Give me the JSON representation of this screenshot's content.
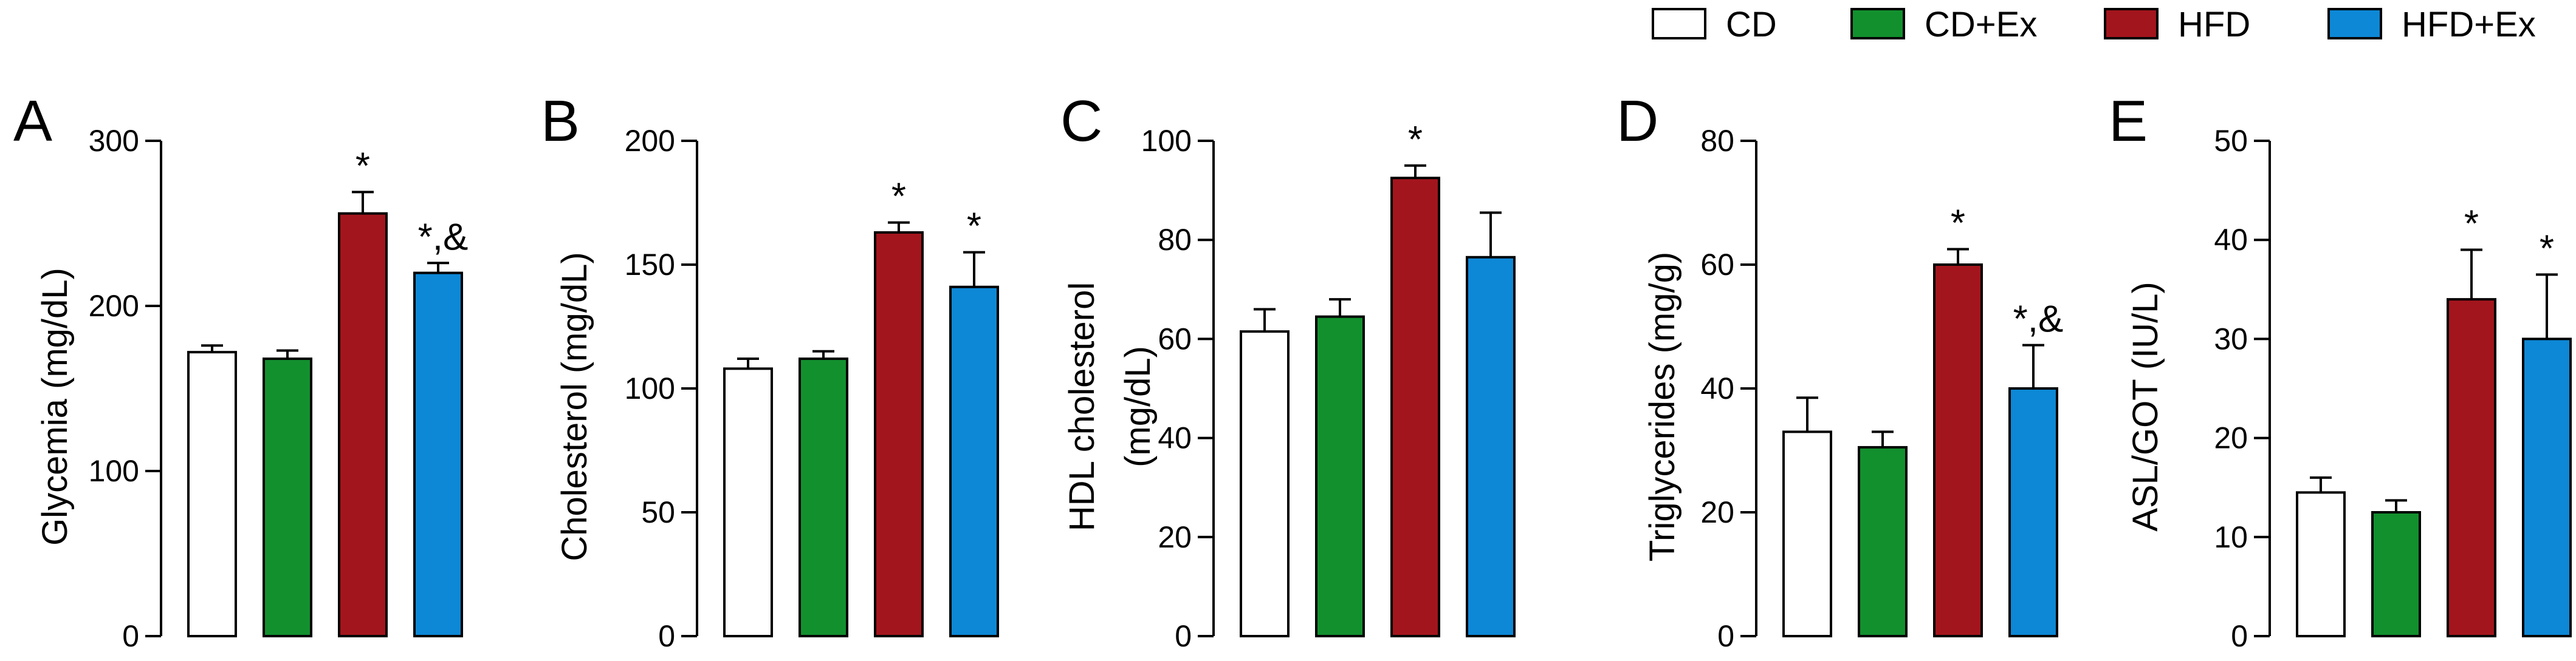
{
  "legend": [
    {
      "label": "CD",
      "color": "#ffffff"
    },
    {
      "label": "CD+Ex",
      "color": "#12902e"
    },
    {
      "label": "HFD",
      "color": "#a3151d"
    },
    {
      "label": "HFD+Ex",
      "color": "#0d88d6"
    }
  ],
  "chart_data": [
    {
      "type": "bar",
      "panel": "A",
      "categories": [
        "CD",
        "CD+Ex",
        "HFD",
        "HFD+Ex"
      ],
      "values": [
        172,
        168,
        256,
        220
      ],
      "errors": [
        4,
        5,
        13,
        6
      ],
      "annotations": [
        "",
        "",
        "*",
        "*,&"
      ],
      "ylabel": "Glycemia (mg/dL)",
      "ylim": [
        0,
        300
      ],
      "yticks": [
        "0",
        "100",
        "200",
        "300"
      ]
    },
    {
      "type": "bar",
      "panel": "B",
      "categories": [
        "CD",
        "CD+Ex",
        "HFD",
        "HFD+Ex"
      ],
      "values": [
        108,
        112,
        163,
        141
      ],
      "errors": [
        4,
        3,
        4,
        14
      ],
      "annotations": [
        "",
        "",
        "*",
        "*"
      ],
      "ylabel": "Cholesterol (mg/dL)",
      "ylim": [
        0,
        200
      ],
      "yticks": [
        "0",
        "50",
        "100",
        "150",
        "200"
      ]
    },
    {
      "type": "bar",
      "panel": "C",
      "categories": [
        "CD",
        "CD+Ex",
        "HFD",
        "HFD+Ex"
      ],
      "values": [
        61.5,
        64.5,
        92.5,
        76.5
      ],
      "errors": [
        4.5,
        3.5,
        2.5,
        9
      ],
      "annotations": [
        "",
        "",
        "*",
        ""
      ],
      "ylabel": [
        "HDL cholesterol",
        "(mg/dL)"
      ],
      "ylim": [
        0,
        100
      ],
      "yticks": [
        "0",
        "20",
        "40",
        "60",
        "80",
        "100"
      ]
    },
    {
      "type": "bar",
      "panel": "D",
      "categories": [
        "CD",
        "CD+Ex",
        "HFD",
        "HFD+Ex"
      ],
      "values": [
        33,
        30.5,
        60,
        40
      ],
      "errors": [
        5.5,
        2.5,
        2.5,
        7
      ],
      "annotations": [
        "",
        "",
        "*",
        "*,&"
      ],
      "ylabel": "Triglycerides (mg/g)",
      "ylim": [
        0,
        80
      ],
      "yticks": [
        "0",
        "20",
        "40",
        "60",
        "80"
      ]
    },
    {
      "type": "bar",
      "panel": "E",
      "categories": [
        "CD",
        "CD+Ex",
        "HFD",
        "HFD+Ex"
      ],
      "values": [
        14.5,
        12.5,
        34,
        30
      ],
      "errors": [
        1.5,
        1.2,
        5,
        6.5
      ],
      "annotations": [
        "",
        "",
        "*",
        "*"
      ],
      "ylabel": "ASL/GOT (IU/L)",
      "ylim": [
        0,
        50
      ],
      "yticks": [
        "0",
        "10",
        "20",
        "30",
        "40",
        "50"
      ]
    }
  ]
}
